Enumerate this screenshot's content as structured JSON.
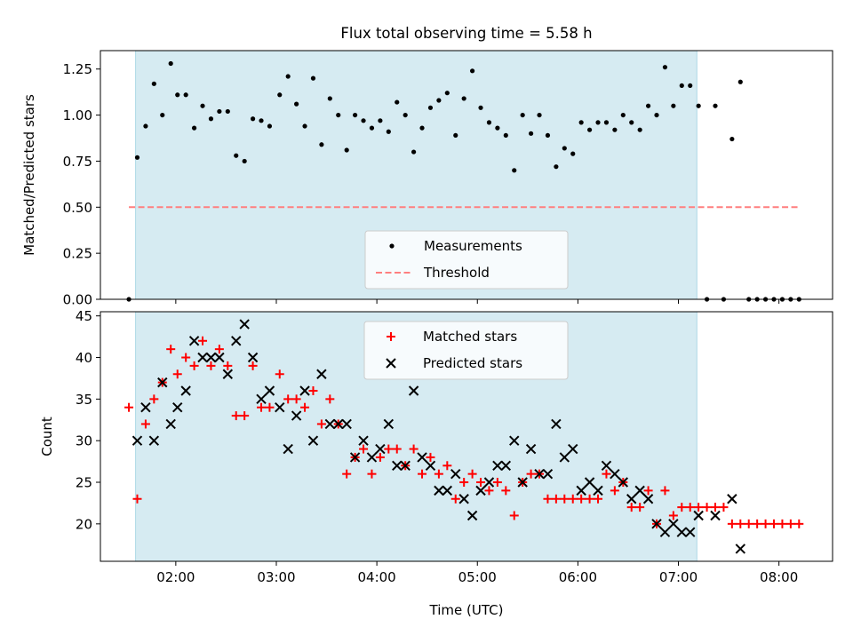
{
  "figure_title": "Flux total observing time = 5.58 h",
  "colors": {
    "shade": "#add8e6",
    "measurement": "#000000",
    "threshold": "#ff7f7f",
    "matched": "#ff0000",
    "predicted": "#000000"
  },
  "chart_data": [
    {
      "type": "scatter",
      "title": "Flux total observing time = 5.58 h",
      "ylabel": "Matched/Predicted stars",
      "xlabel": "",
      "xlim": [
        "01:15",
        "08:32"
      ],
      "ylim": [
        0,
        1.35
      ],
      "shaded_span": [
        "01:36",
        "07:11"
      ],
      "yticks": [
        "0.00",
        "0.25",
        "0.50",
        "0.75",
        "1.00",
        "1.25"
      ],
      "legend": {
        "position": "lower-center",
        "entries": [
          "Measurements",
          "Threshold"
        ]
      },
      "threshold": {
        "name": "Threshold",
        "y": 0.5,
        "x": [
          "01:32",
          "08:12"
        ]
      },
      "series": [
        {
          "name": "Measurements",
          "marker": "dot",
          "points": [
            [
              "01:32",
              0.0
            ],
            [
              "01:37",
              0.77
            ],
            [
              "01:42",
              0.94
            ],
            [
              "01:47",
              1.17
            ],
            [
              "01:52",
              1.0
            ],
            [
              "01:57",
              1.28
            ],
            [
              "02:01",
              1.11
            ],
            [
              "02:06",
              1.11
            ],
            [
              "02:11",
              0.93
            ],
            [
              "02:16",
              1.05
            ],
            [
              "02:21",
              0.98
            ],
            [
              "02:26",
              1.02
            ],
            [
              "02:31",
              1.02
            ],
            [
              "02:36",
              0.78
            ],
            [
              "02:41",
              0.75
            ],
            [
              "02:46",
              0.98
            ],
            [
              "02:51",
              0.97
            ],
            [
              "02:56",
              0.94
            ],
            [
              "03:02",
              1.11
            ],
            [
              "03:07",
              1.21
            ],
            [
              "03:12",
              1.06
            ],
            [
              "03:17",
              0.94
            ],
            [
              "03:22",
              1.2
            ],
            [
              "03:27",
              0.84
            ],
            [
              "03:32",
              1.09
            ],
            [
              "03:37",
              1.0
            ],
            [
              "03:42",
              0.81
            ],
            [
              "03:47",
              1.0
            ],
            [
              "03:52",
              0.97
            ],
            [
              "03:57",
              0.93
            ],
            [
              "04:02",
              0.97
            ],
            [
              "04:07",
              0.91
            ],
            [
              "04:12",
              1.07
            ],
            [
              "04:17",
              1.0
            ],
            [
              "04:22",
              0.8
            ],
            [
              "04:27",
              0.93
            ],
            [
              "04:32",
              1.04
            ],
            [
              "04:37",
              1.08
            ],
            [
              "04:42",
              1.12
            ],
            [
              "04:47",
              0.89
            ],
            [
              "04:52",
              1.09
            ],
            [
              "04:57",
              1.24
            ],
            [
              "05:02",
              1.04
            ],
            [
              "05:07",
              0.96
            ],
            [
              "05:12",
              0.93
            ],
            [
              "05:17",
              0.89
            ],
            [
              "05:22",
              0.7
            ],
            [
              "05:27",
              1.0
            ],
            [
              "05:32",
              0.9
            ],
            [
              "05:37",
              1.0
            ],
            [
              "05:42",
              0.89
            ],
            [
              "05:47",
              0.72
            ],
            [
              "05:52",
              0.82
            ],
            [
              "05:57",
              0.79
            ],
            [
              "06:02",
              0.96
            ],
            [
              "06:07",
              0.92
            ],
            [
              "06:12",
              0.96
            ],
            [
              "06:17",
              0.96
            ],
            [
              "06:22",
              0.92
            ],
            [
              "06:27",
              1.0
            ],
            [
              "06:32",
              0.96
            ],
            [
              "06:37",
              0.92
            ],
            [
              "06:42",
              1.05
            ],
            [
              "06:47",
              1.0
            ],
            [
              "06:52",
              1.26
            ],
            [
              "06:57",
              1.05
            ],
            [
              "07:02",
              1.16
            ],
            [
              "07:07",
              1.16
            ],
            [
              "07:12",
              1.05
            ],
            [
              "07:17",
              0.0
            ],
            [
              "07:22",
              1.05
            ],
            [
              "07:27",
              0.0
            ],
            [
              "07:32",
              0.87
            ],
            [
              "07:37",
              1.18
            ],
            [
              "07:42",
              0.0
            ],
            [
              "07:47",
              0.0
            ],
            [
              "07:52",
              0.0
            ],
            [
              "07:57",
              0.0
            ],
            [
              "08:02",
              0.0
            ],
            [
              "08:07",
              0.0
            ],
            [
              "08:12",
              0.0
            ]
          ]
        }
      ]
    },
    {
      "type": "scatter",
      "title": "",
      "ylabel": "Count",
      "xlabel": "Time (UTC)",
      "xlim": [
        "01:15",
        "08:32"
      ],
      "ylim": [
        15.5,
        45.5
      ],
      "shaded_span": [
        "01:36",
        "07:11"
      ],
      "yticks": [
        "20",
        "25",
        "30",
        "35",
        "40",
        "45"
      ],
      "xticks": [
        "02:00",
        "03:00",
        "04:00",
        "05:00",
        "06:00",
        "07:00",
        "08:00"
      ],
      "legend": {
        "position": "upper-center",
        "entries": [
          "Matched stars",
          "Predicted stars"
        ]
      },
      "series": [
        {
          "name": "Matched stars",
          "marker": "plus",
          "points": [
            [
              "01:32",
              34
            ],
            [
              "01:37",
              23
            ],
            [
              "01:42",
              32
            ],
            [
              "01:47",
              35
            ],
            [
              "01:52",
              37
            ],
            [
              "01:57",
              41
            ],
            [
              "02:01",
              38
            ],
            [
              "02:06",
              40
            ],
            [
              "02:11",
              39
            ],
            [
              "02:16",
              42
            ],
            [
              "02:21",
              39
            ],
            [
              "02:26",
              41
            ],
            [
              "02:31",
              39
            ],
            [
              "02:36",
              33
            ],
            [
              "02:41",
              33
            ],
            [
              "02:46",
              39
            ],
            [
              "02:51",
              34
            ],
            [
              "02:56",
              34
            ],
            [
              "03:02",
              38
            ],
            [
              "03:07",
              35
            ],
            [
              "03:12",
              35
            ],
            [
              "03:17",
              34
            ],
            [
              "03:22",
              36
            ],
            [
              "03:27",
              32
            ],
            [
              "03:32",
              35
            ],
            [
              "03:37",
              32
            ],
            [
              "03:42",
              26
            ],
            [
              "03:47",
              28
            ],
            [
              "03:52",
              29
            ],
            [
              "03:57",
              26
            ],
            [
              "04:02",
              28
            ],
            [
              "04:07",
              29
            ],
            [
              "04:12",
              29
            ],
            [
              "04:17",
              27
            ],
            [
              "04:22",
              29
            ],
            [
              "04:27",
              26
            ],
            [
              "04:32",
              28
            ],
            [
              "04:37",
              26
            ],
            [
              "04:42",
              27
            ],
            [
              "04:47",
              23
            ],
            [
              "04:52",
              25
            ],
            [
              "04:57",
              26
            ],
            [
              "05:02",
              25
            ],
            [
              "05:07",
              24
            ],
            [
              "05:12",
              25
            ],
            [
              "05:17",
              24
            ],
            [
              "05:22",
              21
            ],
            [
              "05:27",
              25
            ],
            [
              "05:32",
              26
            ],
            [
              "05:37",
              26
            ],
            [
              "05:42",
              23
            ],
            [
              "05:47",
              23
            ],
            [
              "05:52",
              23
            ],
            [
              "05:57",
              23
            ],
            [
              "06:02",
              23
            ],
            [
              "06:07",
              23
            ],
            [
              "06:12",
              23
            ],
            [
              "06:17",
              26
            ],
            [
              "06:22",
              24
            ],
            [
              "06:27",
              25
            ],
            [
              "06:32",
              22
            ],
            [
              "06:37",
              22
            ],
            [
              "06:42",
              24
            ],
            [
              "06:47",
              20
            ],
            [
              "06:52",
              24
            ],
            [
              "06:57",
              21
            ],
            [
              "07:02",
              22
            ],
            [
              "07:07",
              22
            ],
            [
              "07:12",
              22
            ],
            [
              "07:17",
              22
            ],
            [
              "07:22",
              22
            ],
            [
              "07:27",
              22
            ],
            [
              "07:32",
              20
            ],
            [
              "07:37",
              20
            ],
            [
              "07:42",
              20
            ],
            [
              "07:47",
              20
            ],
            [
              "07:52",
              20
            ],
            [
              "07:57",
              20
            ],
            [
              "08:02",
              20
            ],
            [
              "08:07",
              20
            ],
            [
              "08:12",
              20
            ]
          ]
        },
        {
          "name": "Predicted stars",
          "marker": "x",
          "points": [
            [
              "01:37",
              30
            ],
            [
              "01:42",
              34
            ],
            [
              "01:47",
              30
            ],
            [
              "01:52",
              37
            ],
            [
              "01:57",
              32
            ],
            [
              "02:01",
              34
            ],
            [
              "02:06",
              36
            ],
            [
              "02:11",
              42
            ],
            [
              "02:16",
              40
            ],
            [
              "02:21",
              40
            ],
            [
              "02:26",
              40
            ],
            [
              "02:31",
              38
            ],
            [
              "02:36",
              42
            ],
            [
              "02:41",
              44
            ],
            [
              "02:46",
              40
            ],
            [
              "02:51",
              35
            ],
            [
              "02:56",
              36
            ],
            [
              "03:02",
              34
            ],
            [
              "03:07",
              29
            ],
            [
              "03:12",
              33
            ],
            [
              "03:17",
              36
            ],
            [
              "03:22",
              30
            ],
            [
              "03:27",
              38
            ],
            [
              "03:32",
              32
            ],
            [
              "03:37",
              32
            ],
            [
              "03:42",
              32
            ],
            [
              "03:47",
              28
            ],
            [
              "03:52",
              30
            ],
            [
              "03:57",
              28
            ],
            [
              "04:02",
              29
            ],
            [
              "04:07",
              32
            ],
            [
              "04:12",
              27
            ],
            [
              "04:17",
              27
            ],
            [
              "04:22",
              36
            ],
            [
              "04:27",
              28
            ],
            [
              "04:32",
              27
            ],
            [
              "04:37",
              24
            ],
            [
              "04:42",
              24
            ],
            [
              "04:47",
              26
            ],
            [
              "04:52",
              23
            ],
            [
              "04:57",
              21
            ],
            [
              "05:02",
              24
            ],
            [
              "05:07",
              25
            ],
            [
              "05:12",
              27
            ],
            [
              "05:17",
              27
            ],
            [
              "05:22",
              30
            ],
            [
              "05:27",
              25
            ],
            [
              "05:32",
              29
            ],
            [
              "05:37",
              26
            ],
            [
              "05:42",
              26
            ],
            [
              "05:47",
              32
            ],
            [
              "05:52",
              28
            ],
            [
              "05:57",
              29
            ],
            [
              "06:02",
              24
            ],
            [
              "06:07",
              25
            ],
            [
              "06:12",
              24
            ],
            [
              "06:17",
              27
            ],
            [
              "06:22",
              26
            ],
            [
              "06:27",
              25
            ],
            [
              "06:32",
              23
            ],
            [
              "06:37",
              24
            ],
            [
              "06:42",
              23
            ],
            [
              "06:47",
              20
            ],
            [
              "06:52",
              19
            ],
            [
              "06:57",
              20
            ],
            [
              "07:02",
              19
            ],
            [
              "07:07",
              19
            ],
            [
              "07:12",
              21
            ],
            [
              "07:22",
              21
            ],
            [
              "07:32",
              23
            ],
            [
              "07:37",
              17
            ]
          ]
        }
      ]
    }
  ]
}
